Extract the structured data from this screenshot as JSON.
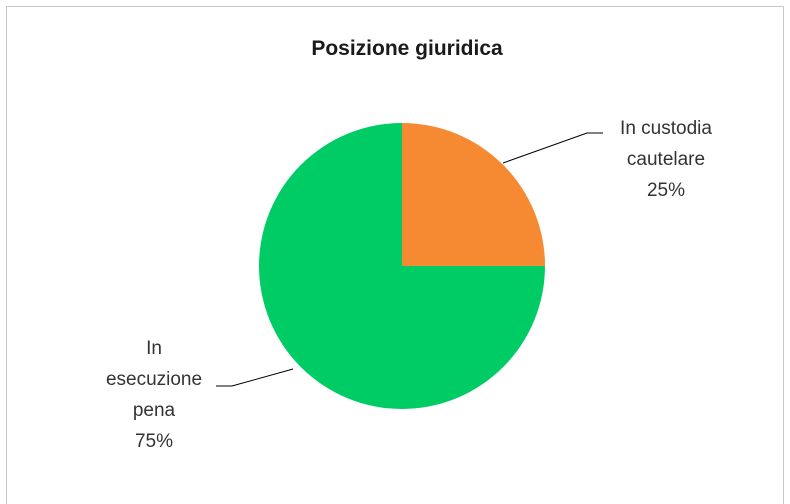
{
  "chart_data": {
    "type": "pie",
    "title": "Posizione giuridica",
    "slices": [
      {
        "label_lines": [
          "In custodia",
          "cautelare",
          "25%"
        ],
        "value": 25,
        "color": "#F58A33"
      },
      {
        "label_lines": [
          "In",
          "esecuzione",
          "pena",
          "75%"
        ],
        "value": 75,
        "color": "#00CC66"
      }
    ],
    "start_angle_deg": 0,
    "direction": "clockwise",
    "leader_line_color": "#000000"
  }
}
